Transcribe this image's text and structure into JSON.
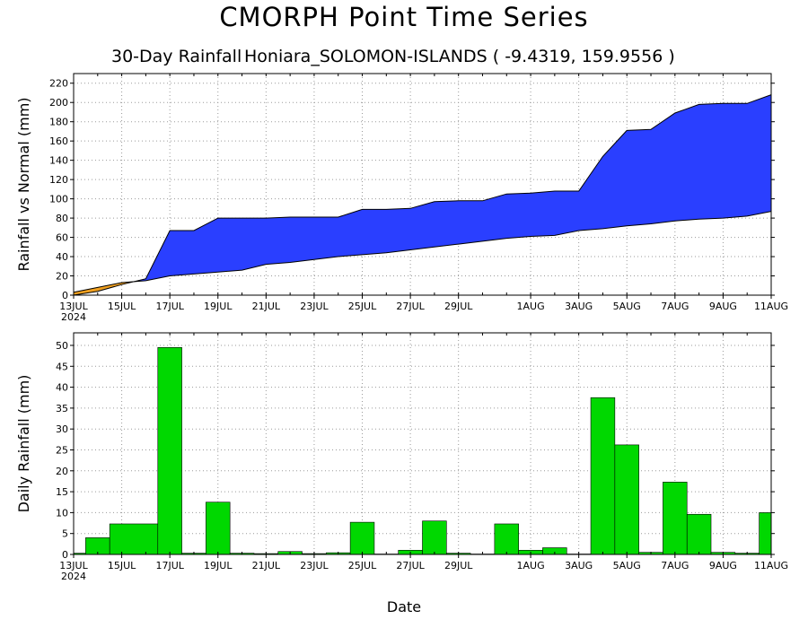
{
  "page": {
    "title": "CMORPH Point Time Series",
    "subtitle_a": "30-Day Rainfall",
    "subtitle_b": "Honiara_SOLOMON-ISLANDS ( -9.4319, 159.9556 )",
    "xlabel": "Date"
  },
  "colors": {
    "above_normal": "#2a3fff",
    "below_normal": "#f0a020",
    "bars": "#00d800",
    "grid": "#9a9a9a"
  },
  "chart_data": [
    {
      "type": "area",
      "xlabel": "",
      "ylabel": "Rainfall vs Normal (mm)",
      "ylim": [
        0,
        230
      ],
      "yticks": [
        0,
        20,
        40,
        60,
        80,
        100,
        120,
        140,
        160,
        180,
        200,
        220
      ],
      "xlim": [
        0,
        29
      ],
      "xticks": [
        {
          "x": 0,
          "label": "13JUL",
          "sub": "2024"
        },
        {
          "x": 2,
          "label": "15JUL"
        },
        {
          "x": 4,
          "label": "17JUL"
        },
        {
          "x": 6,
          "label": "19JUL"
        },
        {
          "x": 8,
          "label": "21JUL"
        },
        {
          "x": 10,
          "label": "23JUL"
        },
        {
          "x": 12,
          "label": "25JUL"
        },
        {
          "x": 14,
          "label": "27JUL"
        },
        {
          "x": 16,
          "label": "29JUL"
        },
        {
          "x": 19,
          "label": "1AUG"
        },
        {
          "x": 21,
          "label": "3AUG"
        },
        {
          "x": 23,
          "label": "5AUG"
        },
        {
          "x": 25,
          "label": "7AUG"
        },
        {
          "x": 27,
          "label": "9AUG"
        },
        {
          "x": 29,
          "label": "11AUG"
        }
      ],
      "grid": true,
      "series": [
        {
          "role": "observed",
          "values": [
            0,
            4,
            11,
            17,
            67,
            67,
            80,
            80,
            80,
            81,
            81,
            81,
            89,
            89,
            90,
            97,
            98,
            98,
            105,
            106,
            108,
            108,
            144,
            171,
            172,
            189,
            198,
            199,
            199,
            208
          ]
        },
        {
          "role": "normal",
          "values": [
            3,
            8,
            13,
            15,
            20,
            22,
            24,
            26,
            32,
            34,
            37,
            40,
            42,
            44,
            47,
            50,
            53,
            56,
            59,
            61,
            62,
            67,
            69,
            72,
            74,
            77,
            79,
            80,
            82,
            87
          ]
        }
      ]
    },
    {
      "type": "bar",
      "xlabel": "Date",
      "ylabel": "Daily Rainfall (mm)",
      "ylim": [
        0,
        53
      ],
      "yticks": [
        0,
        5,
        10,
        15,
        20,
        25,
        30,
        35,
        40,
        45,
        50
      ],
      "xlim": [
        0,
        29
      ],
      "xticks": [
        {
          "x": 0,
          "label": "13JUL",
          "sub": "2024"
        },
        {
          "x": 2,
          "label": "15JUL"
        },
        {
          "x": 4,
          "label": "17JUL"
        },
        {
          "x": 6,
          "label": "19JUL"
        },
        {
          "x": 8,
          "label": "21JUL"
        },
        {
          "x": 10,
          "label": "23JUL"
        },
        {
          "x": 12,
          "label": "25JUL"
        },
        {
          "x": 14,
          "label": "27JUL"
        },
        {
          "x": 16,
          "label": "29JUL"
        },
        {
          "x": 19,
          "label": "1AUG"
        },
        {
          "x": 21,
          "label": "3AUG"
        },
        {
          "x": 23,
          "label": "5AUG"
        },
        {
          "x": 25,
          "label": "7AUG"
        },
        {
          "x": 27,
          "label": "9AUG"
        },
        {
          "x": 29,
          "label": "11AUG"
        }
      ],
      "grid": true,
      "bars": [
        {
          "x0": 0,
          "x1": 0.5,
          "value": 0.3
        },
        {
          "x0": 0.5,
          "x1": 1.5,
          "value": 4
        },
        {
          "x0": 1.5,
          "x1": 3.5,
          "value": 7.3
        },
        {
          "x0": 3.5,
          "x1": 4.5,
          "value": 49.5
        },
        {
          "x0": 4.5,
          "x1": 5.5,
          "value": 0.3
        },
        {
          "x0": 5.5,
          "x1": 6.5,
          "value": 12.5
        },
        {
          "x0": 6.5,
          "x1": 7.5,
          "value": 0.3
        },
        {
          "x0": 7.5,
          "x1": 8.5,
          "value": 0.2
        },
        {
          "x0": 8.5,
          "x1": 9.5,
          "value": 0.7
        },
        {
          "x0": 9.5,
          "x1": 10.5,
          "value": 0.2
        },
        {
          "x0": 10.5,
          "x1": 11.5,
          "value": 0.4
        },
        {
          "x0": 11.5,
          "x1": 12.5,
          "value": 7.7
        },
        {
          "x0": 12.5,
          "x1": 13.5,
          "value": 0.1
        },
        {
          "x0": 13.5,
          "x1": 14.5,
          "value": 1
        },
        {
          "x0": 14.5,
          "x1": 15.5,
          "value": 8
        },
        {
          "x0": 15.5,
          "x1": 16.5,
          "value": 0.3
        },
        {
          "x0": 16.5,
          "x1": 17.5,
          "value": 0.1
        },
        {
          "x0": 17.5,
          "x1": 18.5,
          "value": 7.3
        },
        {
          "x0": 18.5,
          "x1": 19.5,
          "value": 1
        },
        {
          "x0": 19.5,
          "x1": 20.5,
          "value": 1.6
        },
        {
          "x0": 20.5,
          "x1": 21.5,
          "value": 0.1
        },
        {
          "x0": 21.5,
          "x1": 22.5,
          "value": 37.5
        },
        {
          "x0": 22.5,
          "x1": 23.5,
          "value": 26.2
        },
        {
          "x0": 23.5,
          "x1": 24.5,
          "value": 0.5
        },
        {
          "x0": 24.5,
          "x1": 25.5,
          "value": 17.3
        },
        {
          "x0": 25.5,
          "x1": 26.5,
          "value": 9.6
        },
        {
          "x0": 26.5,
          "x1": 27.5,
          "value": 0.5
        },
        {
          "x0": 27.5,
          "x1": 28.5,
          "value": 0.3
        },
        {
          "x0": 28.5,
          "x1": 29,
          "value": 10
        }
      ]
    }
  ]
}
